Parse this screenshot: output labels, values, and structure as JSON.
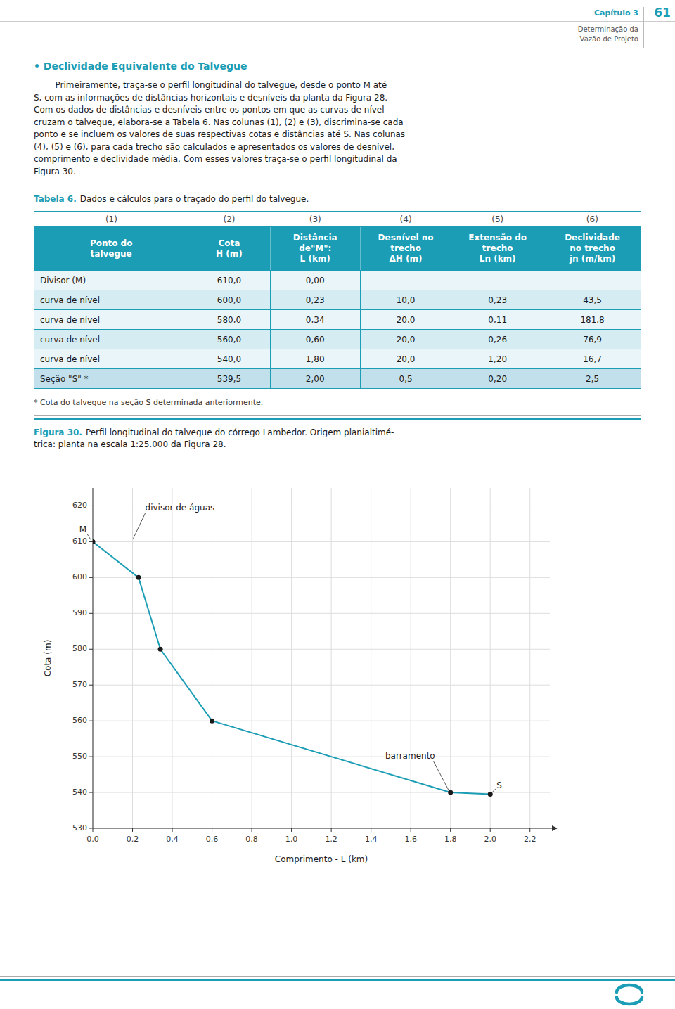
{
  "page": {
    "header": {
      "chapter": "Capítulo 3",
      "subtitle": [
        "Determinação da",
        "Vazão de Projeto"
      ],
      "page_num": "61"
    },
    "section_title": "• Declividade Equivalente do Talvegue",
    "paragraph_lines": [
      "        Primeiramente, traça-se o perfil longitudinal do talvegue, desde o ponto M até",
      "S, com as informações de distâncias horizontais e desníveis da planta da Figura 28.",
      "Com os dados de distâncias e desníveis entre os pontos em que as curvas de nível",
      "cruzam o talvegue, elabora-se a Tabela 6. Nas colunas (1), (2) e (3), discrimina-se cada",
      "ponto e se incluem os valores de suas respectivas cotas e distâncias até S. Nas colunas",
      "(4), (5) e (6), para cada trecho são calculados e apresentados os valores de desnível,",
      "comprimento e declividade média. Com esses valores traça-se o perfil longitudinal da",
      "Figura 30."
    ],
    "table": {
      "label": "Tabela 6.",
      "caption": "Dados e cálculos para o traçado do perfil do talvegue.",
      "col_numbers": [
        "(1)",
        "(2)",
        "(3)",
        "(4)",
        "(5)",
        "(6)"
      ],
      "col_headers": [
        [
          "Ponto do",
          "talvegue"
        ],
        [
          "Cota",
          "H (m)"
        ],
        [
          "Distância",
          "de\"M\":",
          "L (km)"
        ],
        [
          "Desnível no",
          "trecho",
          "ΔH (m)"
        ],
        [
          "Extensão do",
          "trecho",
          "Ln (km)"
        ],
        [
          "Declividade",
          "no trecho",
          "jn (m/km)"
        ]
      ],
      "rows": [
        [
          "Divisor (M)",
          "610,0",
          "0,00",
          "-",
          "-",
          "-"
        ],
        [
          "curva de nível",
          "600,0",
          "0,23",
          "10,0",
          "0,23",
          "43,5"
        ],
        [
          "curva de nível",
          "580,0",
          "0,34",
          "20,0",
          "0,11",
          "181,8"
        ],
        [
          "curva de nível",
          "560,0",
          "0,60",
          "20,0",
          "0,26",
          "76,9"
        ],
        [
          "curva de nível",
          "540,0",
          "1,80",
          "20,0",
          "1,20",
          "16,7"
        ],
        [
          "Seção \"S\" *",
          "539,5",
          "2,00",
          "0,5",
          "0,20",
          "2,5"
        ]
      ],
      "footnote": "* Cota do talvegue na seção S determinada anteriormente."
    },
    "figure": {
      "label": "Figura 30.",
      "caption_lines": [
        "Perfil longitudinal do talvegue do córrego Lambedor. Origem planialtimé-",
        "trica: planta na escala 1:25.000 da Figura 28."
      ]
    }
  },
  "chart_data": {
    "type": "line",
    "x": [
      0.0,
      0.23,
      0.34,
      0.6,
      1.8,
      2.0
    ],
    "values": [
      610.0,
      600.0,
      580.0,
      560.0,
      540.0,
      539.5
    ],
    "color": "#1a9db5",
    "marker": "circle",
    "xlabel": "Comprimento - L (km)",
    "ylabel": "Cota (m)",
    "xlim": [
      0.0,
      2.3
    ],
    "ylim": [
      530,
      625
    ],
    "yticks": [
      530,
      540,
      550,
      560,
      570,
      580,
      590,
      600,
      610,
      620
    ],
    "xticks": [
      {
        "value": 0.0,
        "label": "0,0"
      },
      {
        "value": 0.2,
        "label": "0,2"
      },
      {
        "value": 0.4,
        "label": "0,4"
      },
      {
        "value": 0.6,
        "label": "0,6"
      },
      {
        "value": 0.8,
        "label": "0,8"
      },
      {
        "value": 1.0,
        "label": "1,0"
      },
      {
        "value": 1.2,
        "label": "1,2"
      },
      {
        "value": 1.4,
        "label": "1,4"
      },
      {
        "value": 1.6,
        "label": "1,6"
      },
      {
        "value": 1.8,
        "label": "1,8"
      },
      {
        "value": 2.0,
        "label": "2,0"
      },
      {
        "value": 2.2,
        "label": "2,2"
      }
    ],
    "grid": true,
    "annotations": [
      {
        "text": "M",
        "x": 0.0,
        "y": 610.0
      },
      {
        "text": "divisor de águas",
        "x": 0.2,
        "y": 610.5
      },
      {
        "text": "S",
        "x": 2.0,
        "y": 539.5
      },
      {
        "text": "barramento",
        "x": 1.8,
        "y": 540.0
      }
    ]
  }
}
